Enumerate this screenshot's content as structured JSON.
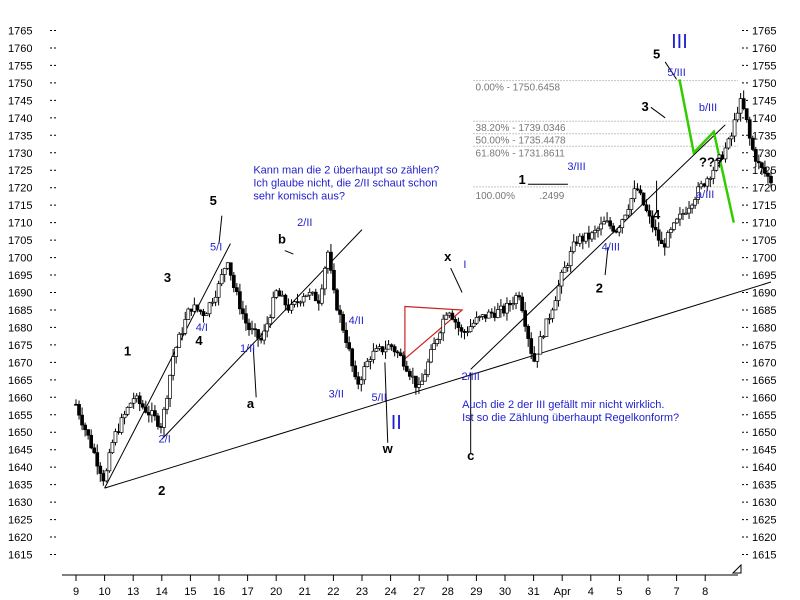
{
  "chart_data": {
    "type": "candlestick",
    "title": "",
    "xlabel": "",
    "ylabel": "",
    "ylim": [
      1612,
      1768
    ],
    "y_ticks": [
      1615,
      1620,
      1625,
      1630,
      1635,
      1640,
      1645,
      1650,
      1655,
      1660,
      1665,
      1670,
      1675,
      1680,
      1685,
      1690,
      1695,
      1700,
      1705,
      1710,
      1715,
      1720,
      1725,
      1730,
      1735,
      1740,
      1745,
      1750,
      1755,
      1760,
      1765
    ],
    "x_ticks": [
      "9",
      "10",
      "13",
      "14",
      "15",
      "16",
      "17",
      "20",
      "21",
      "22",
      "23",
      "24",
      "27",
      "28",
      "29",
      "30",
      "31",
      "Apr",
      "4",
      "5",
      "6",
      "7",
      "8"
    ],
    "grid": false,
    "fib_levels": [
      {
        "label": "0.00% - 1750.6458",
        "value": 1750.6458
      },
      {
        "label": "38.20% - 1739.0346",
        "value": 1739.0346
      },
      {
        "label": "50.00% - 1735.4478",
        "value": 1735.4478
      },
      {
        "label": "61.80% - 1731.8611",
        "value": 1731.8611
      },
      {
        "label": "100.00% - 1720.2499",
        "value": 1720.2499
      }
    ],
    "fib_text_100": "100.00%",
    "fib_text_100_value": ".2499",
    "price_path": [
      [
        0,
        1658
      ],
      [
        1.0,
        1636
      ],
      [
        1.3,
        1648
      ],
      [
        2.0,
        1660
      ],
      [
        3.0,
        1652
      ],
      [
        3.4,
        1672
      ],
      [
        4.0,
        1686
      ],
      [
        4.5,
        1684
      ],
      [
        5.0,
        1692
      ],
      [
        5.3,
        1700
      ],
      [
        5.5,
        1692
      ],
      [
        6.0,
        1680
      ],
      [
        6.5,
        1676
      ],
      [
        7.0,
        1690
      ],
      [
        7.5,
        1685
      ],
      [
        8.0,
        1690
      ],
      [
        8.5,
        1688
      ],
      [
        8.8,
        1702
      ],
      [
        9.0,
        1690
      ],
      [
        9.5,
        1675
      ],
      [
        9.8,
        1663
      ],
      [
        10.3,
        1672
      ],
      [
        11.0,
        1675
      ],
      [
        11.5,
        1670
      ],
      [
        12.0,
        1662
      ],
      [
        12.4,
        1672
      ],
      [
        13.0,
        1686
      ],
      [
        13.5,
        1678
      ],
      [
        14.0,
        1682
      ],
      [
        14.5,
        1684
      ],
      [
        15.0,
        1685
      ],
      [
        15.5,
        1690
      ],
      [
        16.0,
        1670
      ],
      [
        16.3,
        1678
      ],
      [
        16.5,
        1682
      ],
      [
        17.0,
        1695
      ],
      [
        17.5,
        1705
      ],
      [
        18.0,
        1706
      ],
      [
        18.5,
        1710
      ],
      [
        18.9,
        1708
      ],
      [
        19.2,
        1713
      ],
      [
        19.6,
        1720
      ],
      [
        20.0,
        1712
      ],
      [
        20.5,
        1703
      ],
      [
        21.0,
        1710
      ],
      [
        21.5,
        1716
      ],
      [
        22.0,
        1722
      ],
      [
        22.5,
        1728
      ],
      [
        22.9,
        1734
      ],
      [
        23.2,
        1745
      ],
      [
        23.4,
        1741
      ],
      [
        23.6,
        1732
      ],
      [
        23.9,
        1726
      ],
      [
        24.3,
        1722
      ]
    ],
    "wave_labels": [
      {
        "text": "1",
        "x": 1.8,
        "y": 1672,
        "color": "black"
      },
      {
        "text": "2",
        "x": 3.0,
        "y": 1632,
        "color": "black"
      },
      {
        "text": "3",
        "x": 3.2,
        "y": 1693,
        "color": "black"
      },
      {
        "text": "4",
        "x": 4.3,
        "y": 1675,
        "color": "black"
      },
      {
        "text": "5",
        "x": 4.8,
        "y": 1715,
        "color": "black"
      },
      {
        "text": "2/I",
        "x": 3.1,
        "y": 1647,
        "color": "blue"
      },
      {
        "text": "4/I",
        "x": 4.4,
        "y": 1679,
        "color": "blue"
      },
      {
        "text": "5/I",
        "x": 4.9,
        "y": 1702,
        "color": "blue"
      },
      {
        "text": "1/II",
        "x": 6.0,
        "y": 1673,
        "color": "blue"
      },
      {
        "text": "a",
        "x": 6.1,
        "y": 1657,
        "color": "black"
      },
      {
        "text": "b",
        "x": 7.2,
        "y": 1704,
        "color": "black"
      },
      {
        "text": "2/II",
        "x": 8.0,
        "y": 1709,
        "color": "blue"
      },
      {
        "text": "3/II",
        "x": 9.1,
        "y": 1660,
        "color": "blue"
      },
      {
        "text": "4/II",
        "x": 9.8,
        "y": 1681,
        "color": "blue"
      },
      {
        "text": "5/II",
        "x": 10.6,
        "y": 1659,
        "color": "blue"
      },
      {
        "text": "w",
        "x": 10.9,
        "y": 1644,
        "color": "black"
      },
      {
        "text": "II",
        "x": 11.2,
        "y": 1651,
        "color": "blue"
      },
      {
        "text": "x",
        "x": 13.0,
        "y": 1699,
        "color": "black"
      },
      {
        "text": "I",
        "x": 13.6,
        "y": 1697,
        "color": "blue"
      },
      {
        "text": "2/III",
        "x": 13.8,
        "y": 1665,
        "color": "blue"
      },
      {
        "text": "c",
        "x": 13.8,
        "y": 1642,
        "color": "black"
      },
      {
        "text": "1",
        "x": 15.6,
        "y": 1721,
        "color": "black"
      },
      {
        "text": "3/III",
        "x": 17.5,
        "y": 1725,
        "color": "blue"
      },
      {
        "text": "2",
        "x": 18.3,
        "y": 1690,
        "color": "black"
      },
      {
        "text": "4/III",
        "x": 18.7,
        "y": 1702,
        "color": "blue"
      },
      {
        "text": "3",
        "x": 19.9,
        "y": 1742,
        "color": "black"
      },
      {
        "text": "4",
        "x": 20.3,
        "y": 1711,
        "color": "black"
      },
      {
        "text": "5",
        "x": 20.3,
        "y": 1757,
        "color": "black"
      },
      {
        "text": "5/III",
        "x": 21.0,
        "y": 1752,
        "color": "blue"
      },
      {
        "text": "III",
        "x": 21.1,
        "y": 1760,
        "color": "blue"
      },
      {
        "text": "b/III",
        "x": 22.1,
        "y": 1742,
        "color": "blue"
      },
      {
        "text": "???",
        "x": 22.2,
        "y": 1726,
        "color": "black"
      },
      {
        "text": "a/III",
        "x": 22.0,
        "y": 1717,
        "color": "blue"
      }
    ],
    "annotations": [
      {
        "lines": [
          "Kann man die 2 überhaupt so zählen?",
          "Ich glaube nicht, die 2/II schaut schon",
          "sehr komisch aus?"
        ],
        "x": 6.2,
        "y": 1724
      },
      {
        "lines": [
          "Auch die 2 der III gefällt mir nicht wirklich.",
          "Ist so die Zählung überhaupt Regelkonform?"
        ],
        "x": 13.5,
        "y": 1657
      }
    ],
    "colors": {
      "candle": "#000000",
      "wave_label_blue": "#1f1fcc",
      "trendline": "#000000",
      "triangle": "#cc2222",
      "projection": "#33cc00",
      "fib": "#888888"
    }
  }
}
